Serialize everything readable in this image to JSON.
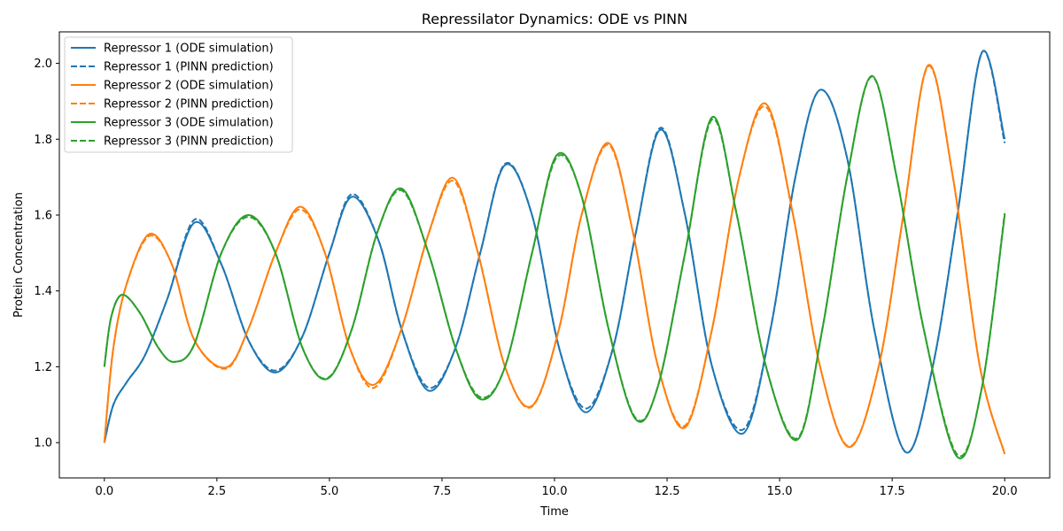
{
  "chart_data": {
    "type": "line",
    "title": "Repressilator Dynamics: ODE vs PINN",
    "xlabel": "Time",
    "ylabel": "Protein Concentration",
    "xlim": [
      -1.0,
      21.0
    ],
    "ylim": [
      0.907,
      2.083
    ],
    "xticks": [
      0.0,
      2.5,
      5.0,
      7.5,
      10.0,
      12.5,
      15.0,
      17.5,
      20.0
    ],
    "xtick_labels": [
      "0.0",
      "2.5",
      "5.0",
      "7.5",
      "10.0",
      "12.5",
      "15.0",
      "17.5",
      "20.0"
    ],
    "yticks": [
      1.0,
      1.2,
      1.4,
      1.6,
      1.8,
      2.0
    ],
    "ytick_labels": [
      "1.0",
      "1.2",
      "1.4",
      "1.6",
      "1.8",
      "2.0"
    ],
    "grid": false,
    "legend_position": "top-left",
    "colors": {
      "repressor1": "#1f77b4",
      "repressor2": "#ff7f0e",
      "repressor3": "#2ca02c"
    },
    "series": [
      {
        "name": "Repressor 1 (ODE simulation)",
        "color": "#1f77b4",
        "style": "solid",
        "x": [
          0,
          0.2,
          0.5,
          0.9,
          1.4,
          2.0,
          2.6,
          3.2,
          3.8,
          4.4,
          5.0,
          5.5,
          6.1,
          6.6,
          7.2,
          7.8,
          8.35,
          8.9,
          9.5,
          10.1,
          10.7,
          11.3,
          11.8,
          12.35,
          12.9,
          13.5,
          14.2,
          14.8,
          15.35,
          15.9,
          16.5,
          17.1,
          17.8,
          18.4,
          18.95,
          19.5,
          20.0
        ],
        "y": [
          1.0,
          1.1,
          1.16,
          1.23,
          1.38,
          1.58,
          1.47,
          1.27,
          1.185,
          1.28,
          1.5,
          1.648,
          1.53,
          1.3,
          1.137,
          1.25,
          1.5,
          1.732,
          1.6,
          1.25,
          1.08,
          1.25,
          1.55,
          1.825,
          1.6,
          1.2,
          1.025,
          1.3,
          1.7,
          1.93,
          1.75,
          1.3,
          0.975,
          1.2,
          1.6,
          2.03,
          1.8
        ]
      },
      {
        "name": "Repressor 1 (PINN prediction)",
        "color": "#1f77b4",
        "style": "dashed",
        "x": [
          0,
          0.2,
          0.5,
          0.9,
          1.4,
          2.0,
          2.6,
          3.2,
          3.8,
          4.4,
          5.0,
          5.5,
          6.1,
          6.6,
          7.2,
          7.8,
          8.35,
          8.9,
          9.5,
          10.1,
          10.7,
          11.3,
          11.8,
          12.35,
          12.9,
          13.5,
          14.2,
          14.8,
          15.35,
          15.9,
          16.5,
          17.1,
          17.8,
          18.4,
          18.95,
          19.5,
          20.0
        ],
        "y": [
          1.0,
          1.1,
          1.16,
          1.23,
          1.38,
          1.588,
          1.47,
          1.27,
          1.19,
          1.28,
          1.5,
          1.655,
          1.53,
          1.3,
          1.145,
          1.25,
          1.5,
          1.735,
          1.6,
          1.25,
          1.09,
          1.25,
          1.55,
          1.83,
          1.6,
          1.2,
          1.035,
          1.3,
          1.7,
          1.93,
          1.75,
          1.3,
          0.975,
          1.2,
          1.6,
          2.03,
          1.79
        ]
      },
      {
        "name": "Repressor 2 (ODE simulation)",
        "color": "#ff7f0e",
        "style": "solid",
        "x": [
          0,
          0.2,
          0.5,
          1.0,
          1.5,
          2.0,
          2.7,
          3.2,
          3.8,
          4.35,
          4.9,
          5.45,
          6.0,
          6.6,
          7.2,
          7.75,
          8.3,
          8.9,
          9.5,
          10.1,
          10.6,
          11.2,
          11.75,
          12.3,
          12.9,
          13.5,
          14.1,
          14.7,
          15.3,
          15.9,
          16.55,
          17.2,
          17.75,
          18.3,
          18.85,
          19.45,
          20.0
        ],
        "y": [
          1.0,
          1.25,
          1.42,
          1.55,
          1.47,
          1.27,
          1.198,
          1.3,
          1.5,
          1.622,
          1.5,
          1.25,
          1.153,
          1.3,
          1.55,
          1.698,
          1.5,
          1.2,
          1.097,
          1.3,
          1.6,
          1.79,
          1.55,
          1.2,
          1.04,
          1.3,
          1.7,
          1.893,
          1.6,
          1.2,
          0.988,
          1.2,
          1.6,
          1.995,
          1.7,
          1.2,
          0.97
        ]
      },
      {
        "name": "Repressor 2 (PINN prediction)",
        "color": "#ff7f0e",
        "style": "dashed",
        "x": [
          0,
          0.2,
          0.5,
          1.0,
          1.5,
          2.0,
          2.7,
          3.2,
          3.8,
          4.35,
          4.9,
          5.45,
          6.0,
          6.6,
          7.2,
          7.75,
          8.3,
          8.9,
          9.5,
          10.1,
          10.6,
          11.2,
          11.75,
          12.3,
          12.9,
          13.5,
          14.1,
          14.7,
          15.3,
          15.9,
          16.55,
          17.2,
          17.75,
          18.3,
          18.85,
          19.45,
          20.0
        ],
        "y": [
          1.0,
          1.25,
          1.42,
          1.545,
          1.47,
          1.27,
          1.195,
          1.3,
          1.5,
          1.615,
          1.5,
          1.25,
          1.145,
          1.3,
          1.55,
          1.69,
          1.5,
          1.2,
          1.095,
          1.3,
          1.6,
          1.785,
          1.55,
          1.2,
          1.045,
          1.3,
          1.7,
          1.885,
          1.6,
          1.2,
          0.99,
          1.2,
          1.6,
          1.992,
          1.7,
          1.2,
          0.97
        ]
      },
      {
        "name": "Repressor 3 (ODE simulation)",
        "color": "#2ca02c",
        "style": "solid",
        "x": [
          0,
          0.15,
          0.4,
          0.8,
          1.2,
          1.55,
          2.0,
          2.6,
          3.2,
          3.8,
          4.4,
          4.95,
          5.5,
          6.05,
          6.6,
          7.2,
          7.8,
          8.35,
          8.9,
          9.5,
          10.05,
          10.6,
          11.2,
          11.8,
          12.3,
          12.9,
          13.5,
          14.05,
          14.7,
          15.4,
          15.95,
          16.5,
          17.05,
          17.6,
          18.2,
          18.95,
          19.5,
          20.0
        ],
        "y": [
          1.2,
          1.33,
          1.39,
          1.34,
          1.25,
          1.213,
          1.26,
          1.5,
          1.6,
          1.5,
          1.25,
          1.168,
          1.3,
          1.55,
          1.67,
          1.5,
          1.25,
          1.115,
          1.2,
          1.5,
          1.758,
          1.65,
          1.3,
          1.062,
          1.15,
          1.5,
          1.858,
          1.6,
          1.2,
          1.008,
          1.3,
          1.7,
          1.967,
          1.7,
          1.3,
          0.962,
          1.15,
          1.6
        ]
      },
      {
        "name": "Repressor 3 (PINN prediction)",
        "color": "#2ca02c",
        "style": "dashed",
        "x": [
          0,
          0.15,
          0.4,
          0.8,
          1.2,
          1.55,
          2.0,
          2.6,
          3.2,
          3.8,
          4.4,
          4.95,
          5.5,
          6.05,
          6.6,
          7.2,
          7.8,
          8.35,
          8.9,
          9.5,
          10.05,
          10.6,
          11.2,
          11.8,
          12.3,
          12.9,
          13.5,
          14.05,
          14.7,
          15.4,
          15.95,
          16.5,
          17.05,
          17.6,
          18.2,
          18.95,
          19.5,
          20.0
        ],
        "y": [
          1.2,
          1.33,
          1.39,
          1.34,
          1.25,
          1.213,
          1.26,
          1.5,
          1.595,
          1.5,
          1.25,
          1.17,
          1.3,
          1.55,
          1.665,
          1.5,
          1.25,
          1.12,
          1.2,
          1.5,
          1.752,
          1.65,
          1.3,
          1.065,
          1.15,
          1.5,
          1.852,
          1.6,
          1.2,
          1.012,
          1.3,
          1.7,
          1.965,
          1.7,
          1.3,
          0.968,
          1.15,
          1.605
        ]
      }
    ]
  }
}
